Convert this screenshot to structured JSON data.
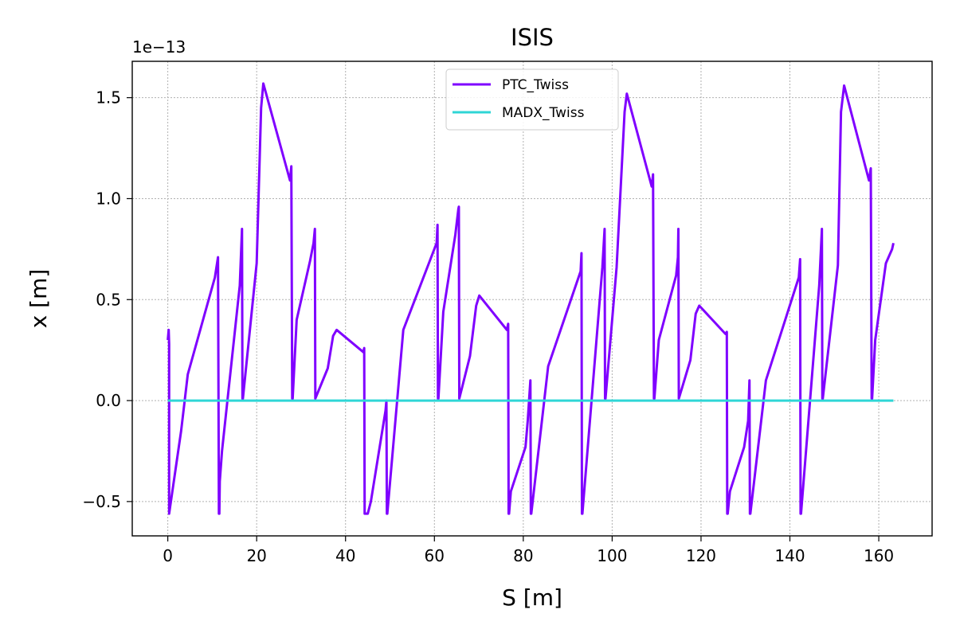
{
  "chart_data": {
    "type": "line",
    "title": "ISIS",
    "xlabel": "S [m]",
    "ylabel": "x [m]",
    "offset_text": "1e−13",
    "xlim": [
      -8,
      172
    ],
    "ylim": [
      -0.67,
      1.68
    ],
    "scale_factor": 1e-13,
    "grid": true,
    "legend_position": "top-center",
    "x_ticks": [
      0,
      20,
      40,
      60,
      80,
      100,
      120,
      140,
      160
    ],
    "y_ticks": [
      -0.5,
      0.0,
      0.5,
      1.0,
      1.5
    ],
    "x_tick_labels": [
      "0",
      "20",
      "40",
      "60",
      "80",
      "100",
      "120",
      "140",
      "160"
    ],
    "y_tick_labels": [
      "−0.5",
      "0.0",
      "0.5",
      "1.0",
      "1.5"
    ],
    "series": [
      {
        "name": "PTC_Twiss",
        "color": "#7f00ff",
        "x": [
          0,
          0.2,
          0.3,
          0.3,
          3.0,
          4.5,
          10.6,
          11.3,
          11.5,
          11.6,
          11.7,
          12.2,
          16.2,
          16.7,
          16.8,
          16.9,
          20.0,
          21.0,
          21.5,
          27.5,
          27.8,
          28.0,
          28.1,
          29.0,
          32.0,
          32.8,
          33.1,
          33.2,
          36.0,
          37.2,
          38.0,
          44.0,
          44.2,
          44.3,
          44.4,
          45.0,
          45.7,
          49.0,
          49.2,
          49.3,
          49.4,
          53.0,
          60.5,
          60.7,
          60.8,
          60.9,
          62.0,
          64.7,
          65.4,
          65.5,
          65.6,
          68.0,
          69.4,
          70.1,
          76.3,
          76.6,
          76.7,
          76.8,
          77.2,
          80.5,
          81.0,
          81.6,
          81.7,
          81.8,
          85.6,
          92.9,
          93.1,
          93.2,
          93.3,
          97.8,
          98.3,
          98.4,
          98.5,
          101.0,
          102.8,
          103.3,
          108.9,
          109.2,
          109.4,
          109.5,
          110.5,
          114.4,
          114.8,
          114.9,
          115.0,
          117.6,
          118.8,
          119.6,
          125.5,
          125.8,
          125.9,
          126.0,
          126.5,
          129.7,
          130.6,
          130.9,
          131.0,
          131.1,
          134.6,
          142.0,
          142.3,
          142.4,
          142.5,
          146.6,
          147.2,
          147.3,
          147.4,
          150.8,
          151.5,
          152.2,
          157.8,
          158.2,
          158.4,
          158.5,
          159.2,
          161.6,
          163.0,
          163.3
        ],
        "values": [
          0.3,
          0.35,
          0.28,
          -0.56,
          -0.15,
          0.13,
          0.61,
          0.71,
          -0.56,
          -0.56,
          -0.4,
          -0.25,
          0.57,
          0.85,
          0.01,
          0.01,
          0.68,
          1.45,
          1.57,
          1.09,
          1.16,
          0.01,
          0.01,
          0.4,
          0.69,
          0.78,
          0.85,
          0.01,
          0.16,
          0.32,
          0.35,
          0.24,
          0.26,
          -0.56,
          -0.56,
          -0.56,
          -0.5,
          -0.05,
          0.0,
          -0.56,
          -0.56,
          0.35,
          0.78,
          0.87,
          0.01,
          0.01,
          0.44,
          0.82,
          0.95,
          0.96,
          0.01,
          0.22,
          0.47,
          0.52,
          0.35,
          0.38,
          -0.56,
          -0.56,
          -0.45,
          -0.23,
          -0.1,
          0.1,
          -0.56,
          -0.56,
          0.17,
          0.64,
          0.73,
          -0.56,
          -0.56,
          0.66,
          0.85,
          0.01,
          0.01,
          0.66,
          1.43,
          1.52,
          1.06,
          1.12,
          0.01,
          0.01,
          0.3,
          0.62,
          0.71,
          0.85,
          0.01,
          0.2,
          0.43,
          0.47,
          0.33,
          0.34,
          -0.56,
          -0.56,
          -0.45,
          -0.23,
          -0.1,
          0.1,
          -0.56,
          -0.56,
          0.1,
          0.61,
          0.7,
          -0.56,
          -0.56,
          0.57,
          0.85,
          0.01,
          0.01,
          0.67,
          1.43,
          1.56,
          1.09,
          1.15,
          0.01,
          0.01,
          0.3,
          0.68,
          0.75,
          0.78
        ]
      },
      {
        "name": "MADX_Twiss",
        "color": "#2fd6d6",
        "x": [
          0,
          163.3
        ],
        "values": [
          0,
          0
        ]
      }
    ]
  }
}
